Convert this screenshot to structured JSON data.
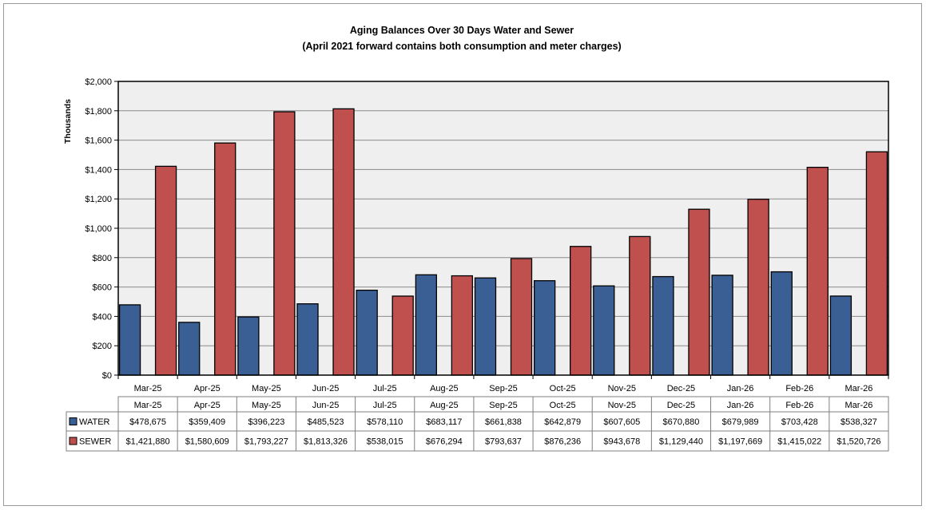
{
  "chart_data": {
    "type": "bar",
    "title": "Aging Balances Over 30 Days Water and Sewer",
    "subtitle": "(April 2021 forward contains both consumption and meter charges)",
    "xlabel": "",
    "ylabel": "Thousands",
    "ylim": [
      0,
      2000
    ],
    "yticks": [
      0,
      200,
      400,
      600,
      800,
      1000,
      1200,
      1400,
      1600,
      1800,
      2000
    ],
    "ytick_labels": [
      "$0",
      "$200",
      "$400",
      "$600",
      "$800",
      "$1,000",
      "$1,200",
      "$1,400",
      "$1,600",
      "$1,800",
      "$2,000"
    ],
    "grid": true,
    "legend": "data-table",
    "categories": [
      "Mar-25",
      "Apr-25",
      "May-25",
      "Jun-25",
      "Jul-25",
      "Aug-25",
      "Sep-25",
      "Oct-25",
      "Nov-25",
      "Dec-25",
      "Jan-26",
      "Feb-26",
      "Mar-26"
    ],
    "series": [
      {
        "name": "WATER",
        "color": "#3a5f94",
        "values": [
          478.675,
          359.409,
          396.223,
          485.523,
          578.11,
          683.117,
          661.838,
          642.879,
          607.605,
          670.88,
          679.989,
          703.428,
          538.327
        ],
        "labels": [
          "$478,675",
          "$359,409",
          "$396,223",
          "$485,523",
          "$578,110",
          "$683,117",
          "$661,838",
          "$642,879",
          "$607,605",
          "$670,880",
          "$679,989",
          "$703,428",
          "$538,327"
        ]
      },
      {
        "name": "SEWER",
        "color": "#c0504d",
        "values": [
          1421.88,
          1580.609,
          1793.227,
          1813.326,
          538.015,
          676.294,
          793.637,
          876.236,
          943.678,
          1129.44,
          1197.669,
          1415.022,
          1520.726
        ],
        "labels": [
          "$1,421,880",
          "$1,580,609",
          "$1,793,227",
          "$1,813,326",
          "$538,015",
          "$676,294",
          "$793,637",
          "$876,236",
          "$943,678",
          "$1,129,440",
          "$1,197,669",
          "$1,415,022",
          "$1,520,726"
        ]
      }
    ]
  }
}
